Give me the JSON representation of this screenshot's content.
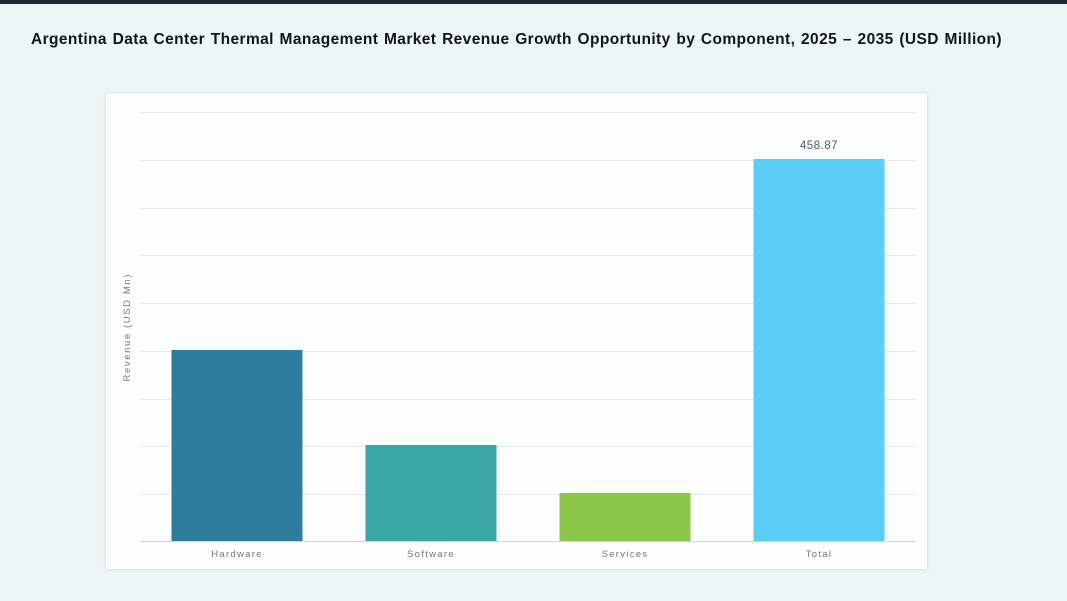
{
  "page": {
    "title": "Argentina Data Center Thermal Management Market Revenue Growth Opportunity by Component, 2025 – 2035 (USD Million)"
  },
  "colors": {
    "background": "#eef6f5",
    "top_strip": "#1d272c",
    "panel_bg": "#fcfefe",
    "panel_border": "#dbe4e6",
    "gridline": "#e3eaeb",
    "axis_line": "#ccd8da",
    "title_text": "#0f151d",
    "label_text": "#6e7a81",
    "value_text": "#4d5a63",
    "bar_colors": [
      "#2E7D9F",
      "#3AA6A4",
      "#8CC74B",
      "#5BCEF5"
    ]
  },
  "chart_data": {
    "type": "bar",
    "title": "Argentina Data Center Thermal Management Market Revenue Growth Opportunity by Component, 2025 – 2035 (USD Million)",
    "categories": [
      "Hardware",
      "Software",
      "Services",
      "Total"
    ],
    "values": [
      229.44,
      114.72,
      57.36,
      458.87
    ],
    "value_labels": [
      "",
      "",
      "",
      "458.87"
    ],
    "xlabel": "",
    "ylabel": "Revenue (USD Mn)",
    "ylim": [
      0,
      516.2
    ],
    "gridline_intervals": 9,
    "grid": true,
    "legend_position": "none"
  }
}
